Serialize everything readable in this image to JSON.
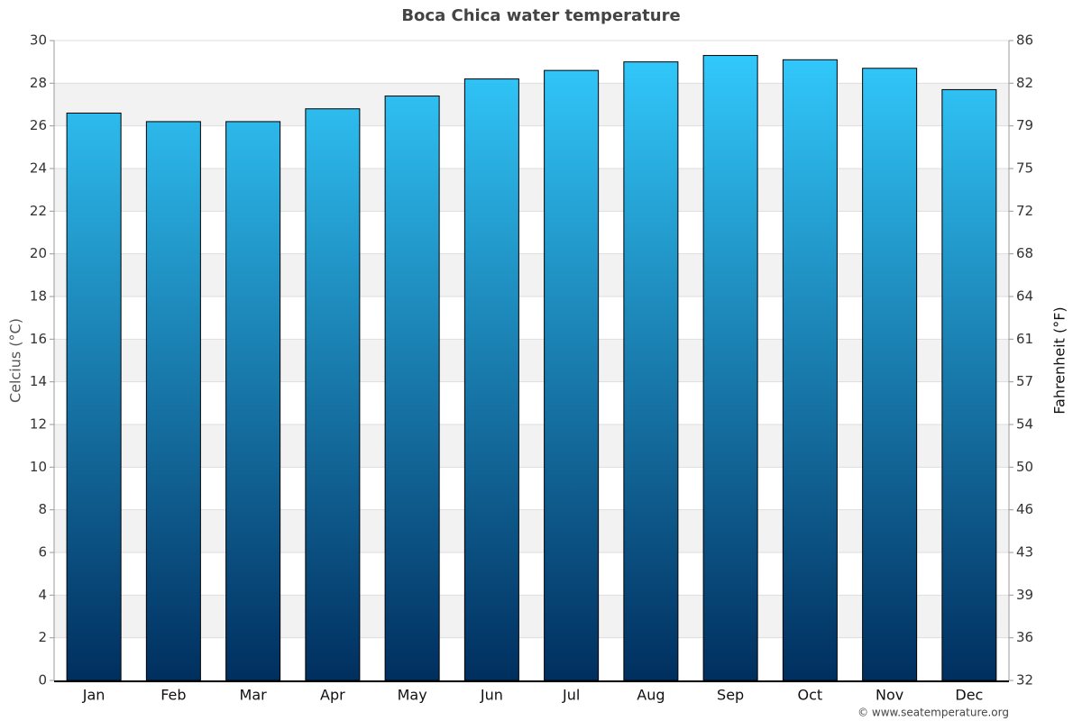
{
  "chart_data": {
    "type": "bar",
    "title": "Boca Chica water temperature",
    "categories": [
      "Jan",
      "Feb",
      "Mar",
      "Apr",
      "May",
      "Jun",
      "Jul",
      "Aug",
      "Sep",
      "Oct",
      "Nov",
      "Dec"
    ],
    "values": [
      26.6,
      26.2,
      26.2,
      26.8,
      27.4,
      28.2,
      28.6,
      29.0,
      29.3,
      29.1,
      28.7,
      27.7
    ],
    "y_label": "Celcius (°C)",
    "y2_label": "Fahrenheit (°F)",
    "ylim": [
      0,
      30
    ],
    "yticks": [
      0,
      2,
      4,
      6,
      8,
      10,
      12,
      14,
      16,
      18,
      20,
      22,
      24,
      26,
      28,
      30
    ],
    "y2lim": [
      32,
      86
    ],
    "y2ticks": [
      32,
      {
        "value": 35.6,
        "label": "36"
      },
      {
        "value": 39.2,
        "label": "39"
      },
      {
        "value": 42.8,
        "label": "43"
      },
      {
        "value": 46.4,
        "label": "46"
      },
      50,
      {
        "value": 53.6,
        "label": "54"
      },
      {
        "value": 57.2,
        "label": "57"
      },
      {
        "value": 60.8,
        "label": "61"
      },
      {
        "value": 64.4,
        "label": "64"
      },
      68,
      {
        "value": 71.6,
        "label": "72"
      },
      {
        "value": 75.2,
        "label": "75"
      },
      {
        "value": 78.8,
        "label": "79"
      },
      {
        "value": 82.4,
        "label": "82"
      },
      86
    ],
    "grid": true,
    "credit": "© www.seatemperature.org"
  }
}
